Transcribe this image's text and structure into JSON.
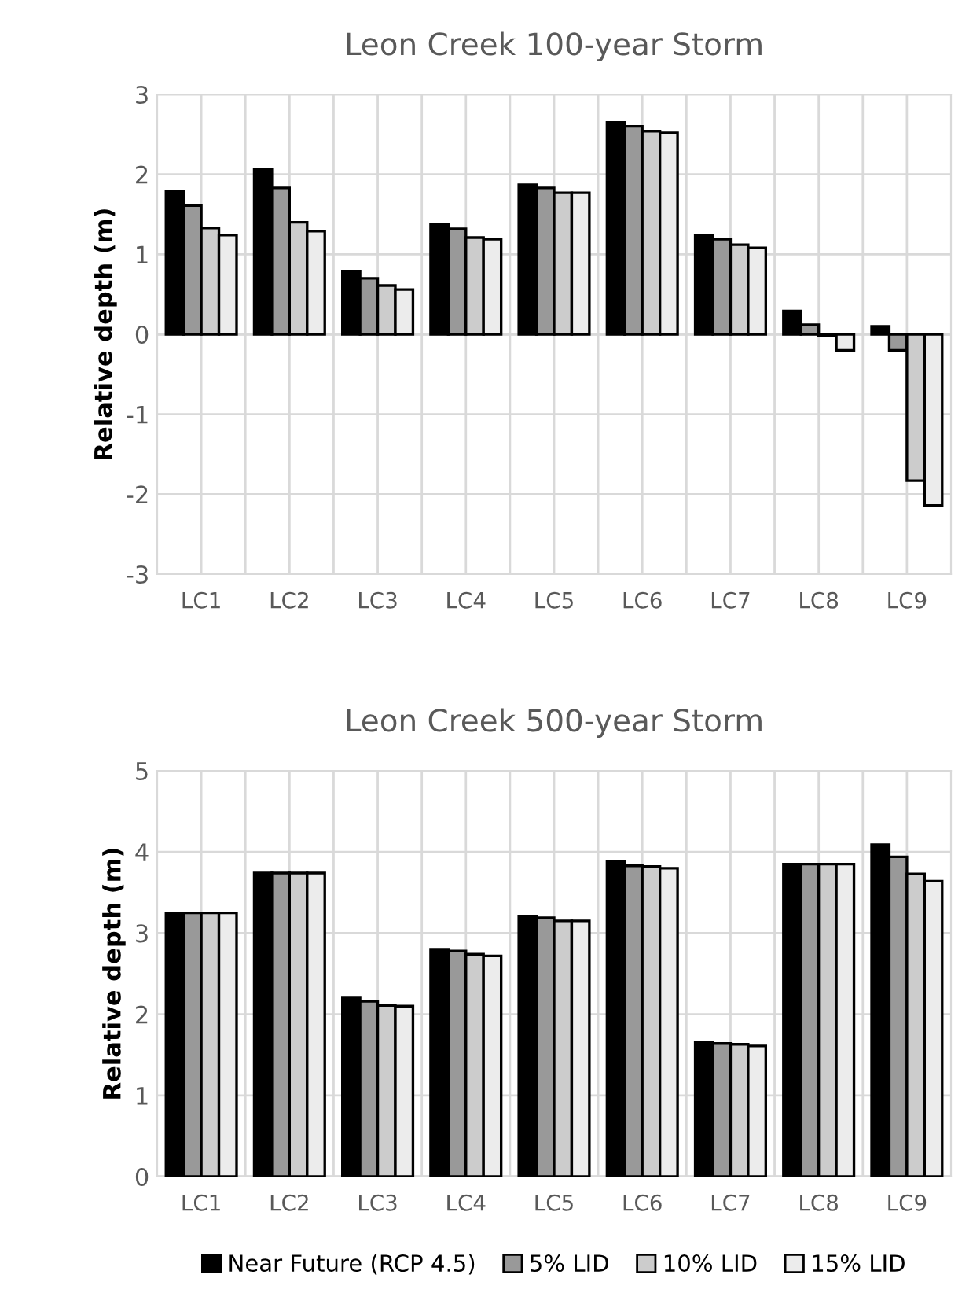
{
  "chart_data": [
    {
      "type": "bar",
      "title": "Leon Creek 100-year Storm",
      "ylabel": "Relative depth (m)",
      "categories": [
        "LC1",
        "LC2",
        "LC3",
        "LC4",
        "LC5",
        "LC6",
        "LC7",
        "LC8",
        "LC9"
      ],
      "ylim": [
        -3,
        3
      ],
      "yticks": [
        {
          "value": -3,
          "label": "-3"
        },
        {
          "value": -2,
          "label": "-2"
        },
        {
          "value": -1,
          "label": "-1"
        },
        0,
        1,
        2,
        3
      ],
      "grid": true,
      "legend": false,
      "series": [
        {
          "color": "#000000",
          "values": [
            1.79,
            2.06,
            0.79,
            1.38,
            1.87,
            2.65,
            1.24,
            0.29,
            0.1
          ]
        },
        {
          "color": "#999999",
          "values": [
            1.61,
            1.83,
            0.7,
            1.32,
            1.83,
            2.6,
            1.19,
            0.12,
            -0.2
          ]
        },
        {
          "color": "#cccccc",
          "values": [
            1.33,
            1.4,
            0.61,
            1.21,
            1.77,
            2.54,
            1.12,
            -0.02,
            -1.83
          ]
        },
        {
          "color": "#ececec",
          "values": [
            1.24,
            1.29,
            0.56,
            1.19,
            1.77,
            2.52,
            1.08,
            -0.2,
            -2.14
          ]
        }
      ]
    },
    {
      "type": "bar",
      "title": "Leon Creek 500-year Storm",
      "ylabel": "Relative depth (m)",
      "categories": [
        "LC1",
        "LC2",
        "LC3",
        "LC4",
        "LC5",
        "LC6",
        "LC7",
        "LC8",
        "LC9"
      ],
      "ylim": [
        0,
        5
      ],
      "yticks": [
        0,
        1,
        2,
        3,
        4,
        5
      ],
      "grid": true,
      "legend": "bottom",
      "series": [
        {
          "name": "Near Future (RCP 4.5)",
          "color": "#000000",
          "values": [
            3.25,
            3.74,
            2.2,
            2.8,
            3.21,
            3.88,
            1.66,
            3.85,
            4.09
          ]
        },
        {
          "name": "5% LID",
          "color": "#999999",
          "values": [
            3.25,
            3.74,
            2.16,
            2.78,
            3.19,
            3.83,
            1.64,
            3.85,
            3.94
          ]
        },
        {
          "name": "10% LID",
          "color": "#cccccc",
          "values": [
            3.25,
            3.74,
            2.11,
            2.74,
            3.15,
            3.82,
            1.63,
            3.85,
            3.73
          ]
        },
        {
          "name": "15% LID",
          "color": "#ececec",
          "values": [
            3.25,
            3.74,
            2.1,
            2.72,
            3.15,
            3.8,
            1.61,
            3.85,
            3.64
          ]
        }
      ]
    }
  ]
}
